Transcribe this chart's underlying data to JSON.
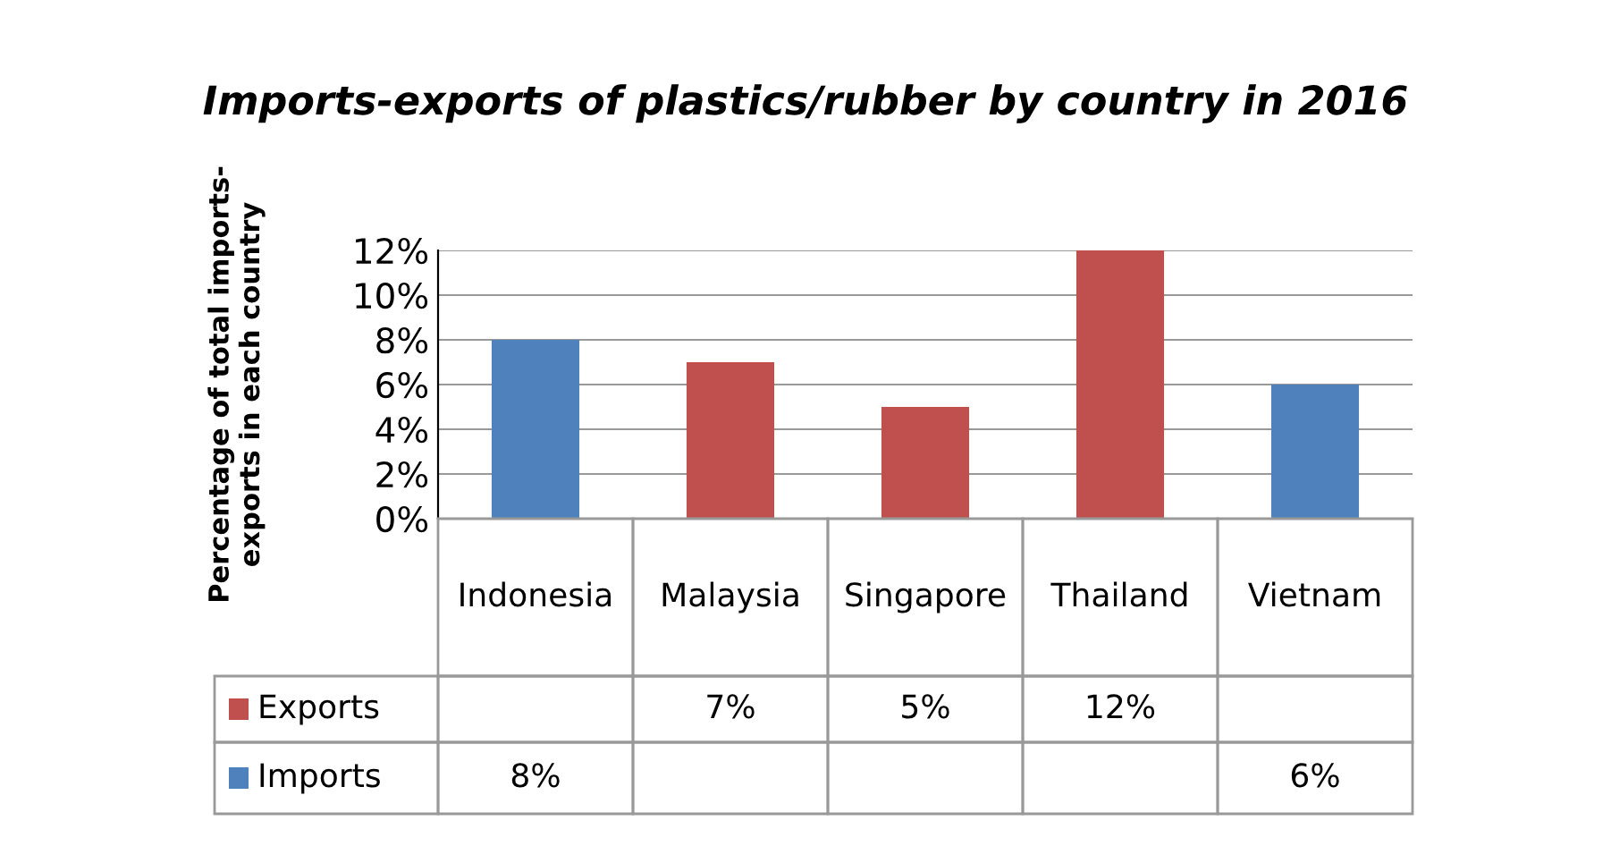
{
  "chart_data": {
    "type": "bar",
    "title": "Imports-exports of plastics/rubber by country in 2016",
    "ylabel": "Percentage of total imports-\nexports in each country",
    "categories": [
      "Indonesia",
      "Malaysia",
      "Singapore",
      "Thailand",
      "Vietnam"
    ],
    "series": [
      {
        "name": "Exports",
        "color": "#c0504d",
        "values": [
          null,
          7,
          5,
          12,
          null
        ],
        "value_labels": [
          null,
          "7%",
          "5%",
          "12%",
          null
        ]
      },
      {
        "name": "Imports",
        "color": "#4f81bd",
        "values": [
          8,
          null,
          null,
          null,
          6
        ],
        "value_labels": [
          "8%",
          null,
          null,
          null,
          "6%"
        ]
      }
    ],
    "ylim": [
      0,
      12
    ],
    "yticks": [
      {
        "value": 0,
        "label": "0%"
      },
      {
        "value": 2,
        "label": "2%"
      },
      {
        "value": 4,
        "label": "4%"
      },
      {
        "value": 6,
        "label": "6%"
      },
      {
        "value": 8,
        "label": "8%"
      },
      {
        "value": 10,
        "label": "10%"
      },
      {
        "value": 12,
        "label": "12%"
      }
    ],
    "grid": "y",
    "legend": "bottom"
  }
}
